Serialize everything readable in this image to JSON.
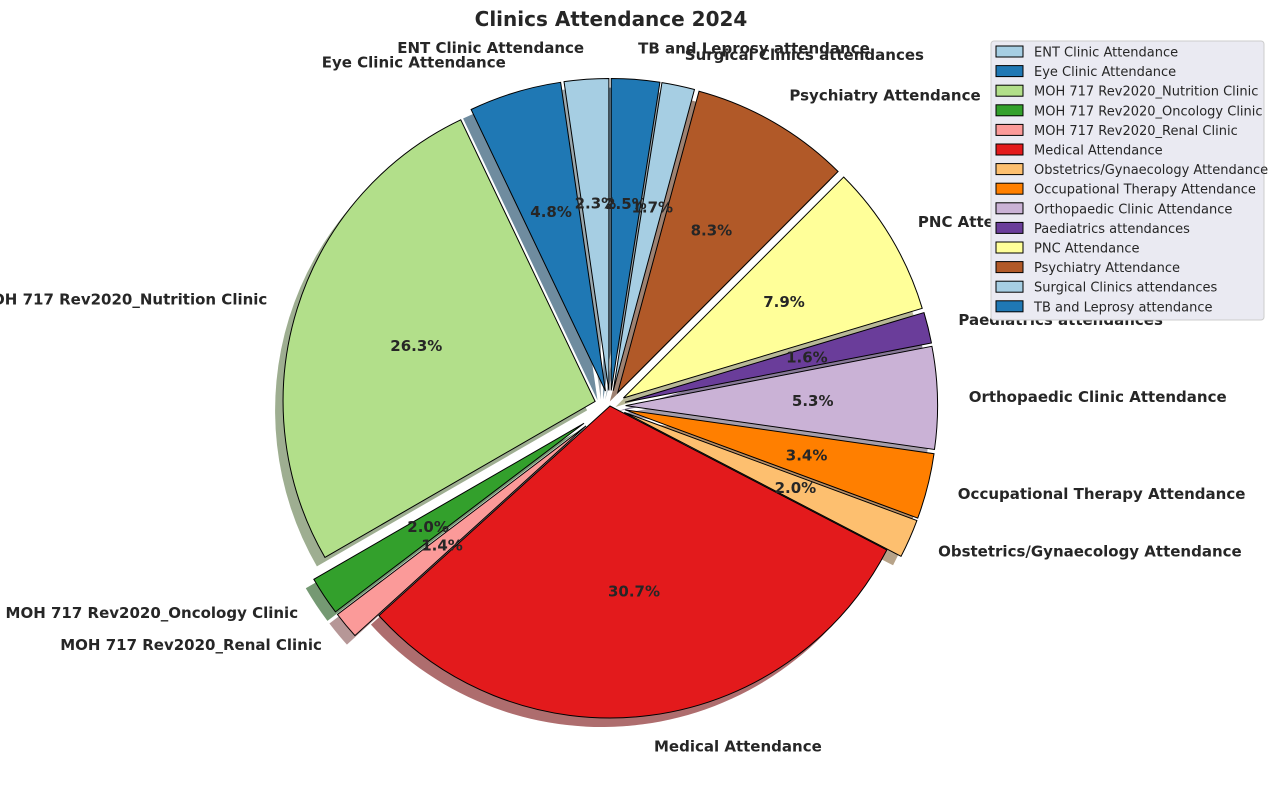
{
  "chart_data": {
    "type": "pie",
    "title": "Clinics Attendance 2024",
    "start_angle_deg": 90,
    "direction": "counterclockwise",
    "shadow": true,
    "legend_position": "top-right",
    "slices": [
      {
        "label": "ENT Clinic Attendance",
        "pct": 2.3,
        "pct_label": "2.3%",
        "color": "#a6cee3",
        "explode": 0.05
      },
      {
        "label": "Eye Clinic Attendance",
        "pct": 4.8,
        "pct_label": "4.8%",
        "color": "#1f78b4",
        "explode": 0.05
      },
      {
        "label": "MOH 717 Rev2020_Nutrition Clinic",
        "pct": 26.3,
        "pct_label": "26.3%",
        "color": "#b2df8a",
        "explode": 0.05
      },
      {
        "label": "MOH 717 Rev2020_Oncology Clinic",
        "pct": 2.0,
        "pct_label": "2.0%",
        "color": "#33a02c",
        "explode": 0.1
      },
      {
        "label": "MOH 717 Rev2020_Renal Clinic",
        "pct": 1.4,
        "pct_label": "1.4%",
        "color": "#fb9a99",
        "explode": 0.1
      },
      {
        "label": "Medical Attendance",
        "pct": 30.7,
        "pct_label": "30.7%",
        "color": "#e31a1c",
        "explode": 0.0
      },
      {
        "label": "Obstetrics/Gynaecology Attendance",
        "pct": 2.0,
        "pct_label": "2.0%",
        "color": "#fdbf6f",
        "explode": 0.05
      },
      {
        "label": "Occupational Therapy Attendance",
        "pct": 3.4,
        "pct_label": "3.4%",
        "color": "#ff7f00",
        "explode": 0.05
      },
      {
        "label": "Orthopaedic Clinic Attendance",
        "pct": 5.3,
        "pct_label": "5.3%",
        "color": "#cab2d6",
        "explode": 0.05
      },
      {
        "label": "Paediatrics attendances",
        "pct": 1.6,
        "pct_label": "1.6%",
        "color": "#6a3d9a",
        "explode": 0.05
      },
      {
        "label": "PNC Attendance",
        "pct": 7.9,
        "pct_label": "7.9%",
        "color": "#ffff99",
        "explode": 0.05
      },
      {
        "label": "Psychiatry Attendance",
        "pct": 8.3,
        "pct_label": "8.3%",
        "color": "#b15928",
        "explode": 0.05
      },
      {
        "label": "Surgical Clinics attendances",
        "pct": 1.7,
        "pct_label": "1.7%",
        "color": "#a6cee3",
        "explode": 0.05
      },
      {
        "label": "TB and Leprosy attendance",
        "pct": 2.5,
        "pct_label": "2.5%",
        "color": "#1f78b4",
        "explode": 0.05
      }
    ]
  }
}
